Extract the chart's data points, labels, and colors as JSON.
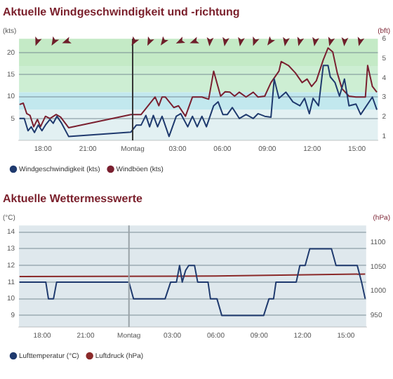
{
  "chart_data": [
    {
      "type": "line",
      "title": "Aktuelle Windgeschwindigkeit und -richtung",
      "ylabel": "(kts)",
      "y2label": "(bft)",
      "xlim": [
        "--03-15T16:24",
        "--03-16T16:24"
      ],
      "xticks": [
        {
          "value": "--03-15T18:00",
          "label": "18:00"
        },
        {
          "value": "--03-15T21:00",
          "label": "21:00"
        },
        {
          "value": "--03-16T00:00",
          "label": "Montag"
        },
        {
          "value": "--03-16T03:00",
          "label": "03:00"
        },
        {
          "value": "--03-16T06:00",
          "label": "06:00"
        },
        {
          "value": "--03-16T09:00",
          "label": "09:00"
        },
        {
          "value": "--03-16T12:00",
          "label": "12:00"
        },
        {
          "value": "--03-16T15:00",
          "label": "15:00"
        }
      ],
      "ylim": [
        0,
        23.2
      ],
      "yticks": [
        5,
        10,
        15,
        20
      ],
      "y2lim": [
        0.8,
        6
      ],
      "y2ticks": [
        1,
        2,
        3,
        4,
        5,
        6
      ],
      "grid": "y",
      "legend": "bottom",
      "marker": "none",
      "bands": [
        {
          "axis": "y",
          "from": 0,
          "to": 7,
          "color": "#e2f0f2"
        },
        {
          "axis": "y",
          "from": 7,
          "to": 11,
          "color": "#c2e8ee"
        },
        {
          "axis": "y",
          "from": 11,
          "to": 17,
          "color": "#cdeed3"
        },
        {
          "axis": "y",
          "from": 17,
          "to": 23.2,
          "color": "#c4eac6"
        }
      ],
      "ref_lines": [
        {
          "axis": "x",
          "value": "--03-16T00:00",
          "color": "#333333"
        }
      ],
      "series": [
        {
          "name": "Windgeschwindigkeit (kts)",
          "color": "#1f3a6e",
          "x": [
            "--03-15T16:26",
            "--03-15T16:45",
            "--03-15T17:00",
            "--03-15T17:13",
            "--03-15T17:26",
            "--03-15T17:41",
            "--03-15T17:56",
            "--03-15T18:10",
            "--03-15T18:28",
            "--03-15T18:41",
            "--03-15T18:56",
            "--03-15T19:15",
            "--03-15T19:43",
            "--03-15T23:53",
            "--03-16T00:15",
            "--03-16T00:34",
            "--03-16T00:53",
            "--03-16T01:08",
            "--03-16T01:23",
            "--03-16T01:40",
            "--03-16T01:58",
            "--03-16T02:26",
            "--03-16T02:55",
            "--03-16T03:13",
            "--03-16T03:41",
            "--03-16T04:00",
            "--03-16T04:19",
            "--03-16T04:38",
            "--03-16T04:56",
            "--03-16T05:25",
            "--03-16T05:43",
            "--03-16T06:02",
            "--03-16T06:20",
            "--03-16T06:40",
            "--03-16T07:08",
            "--03-16T07:35",
            "--03-16T08:04",
            "--03-16T08:23",
            "--03-16T08:50",
            "--03-16T09:15",
            "--03-16T09:28",
            "--03-16T09:47",
            "--03-16T10:15",
            "--03-16T10:43",
            "--03-16T11:11",
            "--03-16T11:30",
            "--03-16T11:49",
            "--03-16T12:04",
            "--03-16T12:26",
            "--03-16T12:45",
            "--03-16T13:04",
            "--03-16T13:13",
            "--03-16T13:32",
            "--03-16T13:50",
            "--03-16T14:10",
            "--03-16T14:28",
            "--03-16T14:56",
            "--03-16T15:15",
            "--03-16T16:02",
            "--03-16T16:20"
          ],
          "values": [
            5.0,
            5.0,
            2.2,
            3.1,
            1.8,
            3.5,
            2.2,
            3.5,
            4.8,
            3.9,
            5.5,
            3.9,
            0.9,
            1.9,
            3.5,
            3.5,
            5.7,
            3.1,
            5.7,
            3.1,
            5.5,
            0.9,
            5.5,
            6.1,
            3.1,
            5.5,
            3.1,
            5.5,
            3.1,
            7.9,
            8.8,
            5.9,
            5.9,
            7.5,
            5.0,
            5.9,
            5.0,
            6.1,
            5.5,
            5.3,
            14.0,
            9.6,
            11.0,
            8.8,
            7.9,
            9.6,
            6.1,
            9.6,
            7.9,
            17.1,
            17.1,
            14.5,
            13.2,
            10.1,
            14.0,
            7.9,
            8.3,
            5.9,
            9.9,
            7.0
          ]
        },
        {
          "name": "Windböen (kts)",
          "color": "#7a2030",
          "x": [
            "--03-15T16:26",
            "--03-15T16:41",
            "--03-15T16:55",
            "--03-15T17:08",
            "--03-15T17:23",
            "--03-15T17:38",
            "--03-15T17:50",
            "--03-15T18:10",
            "--03-15T18:28",
            "--03-15T18:53",
            "--03-15T19:11",
            "--03-15T19:43",
            "--03-15T23:53",
            "--03-16T00:34",
            "--03-16T01:30",
            "--03-16T01:45",
            "--03-16T01:58",
            "--03-16T02:11",
            "--03-16T02:45",
            "--03-16T03:04",
            "--03-16T03:32",
            "--03-16T04:00",
            "--03-16T04:38",
            "--03-16T05:05",
            "--03-16T05:25",
            "--03-16T05:53",
            "--03-16T06:11",
            "--03-16T06:30",
            "--03-16T06:49",
            "--03-16T07:08",
            "--03-16T07:35",
            "--03-16T08:04",
            "--03-16T08:23",
            "--03-16T08:50",
            "--03-16T09:15",
            "--03-16T09:47",
            "--03-16T09:56",
            "--03-16T10:25",
            "--03-16T10:53",
            "--03-16T11:20",
            "--03-16T11:40",
            "--03-16T11:58",
            "--03-16T12:17",
            "--03-16T12:45",
            "--03-16T13:04",
            "--03-16T13:23",
            "--03-16T13:41",
            "--03-16T14:00",
            "--03-16T14:28",
            "--03-16T14:56",
            "--03-16T15:34",
            "--03-16T15:43",
            "--03-16T16:02",
            "--03-16T16:20"
          ],
          "values": [
            8.2,
            8.5,
            6.1,
            5.7,
            3.1,
            4.8,
            3.1,
            5.5,
            5.0,
            5.9,
            5.3,
            2.9,
            5.9,
            5.9,
            9.9,
            7.9,
            9.9,
            9.9,
            7.5,
            7.9,
            5.5,
            9.9,
            9.9,
            9.4,
            15.8,
            10.1,
            11.1,
            11.0,
            10.1,
            11.0,
            9.9,
            11.0,
            9.9,
            10.1,
            13.2,
            15.8,
            18.0,
            17.1,
            15.4,
            13.2,
            14.0,
            12.3,
            13.6,
            18.4,
            21.1,
            20.2,
            15.4,
            11.8,
            10.1,
            9.9,
            9.9,
            17.1,
            12.3,
            11.0
          ]
        }
      ]
    },
    {
      "type": "line",
      "title": "Aktuelle Wettermesswerte",
      "ylabel": "(°C)",
      "y2label": "(hPa)",
      "xlim": [
        "--03-15T16:24",
        "--03-16T16:24"
      ],
      "xticks": [
        {
          "value": "--03-15T18:00",
          "label": "18:00"
        },
        {
          "value": "--03-15T21:00",
          "label": "21:00"
        },
        {
          "value": "--03-16T00:00",
          "label": "Montag"
        },
        {
          "value": "--03-16T03:00",
          "label": "03:00"
        },
        {
          "value": "--03-16T06:00",
          "label": "06:00"
        },
        {
          "value": "--03-16T09:00",
          "label": "09:00"
        },
        {
          "value": "--03-16T12:00",
          "label": "12:00"
        },
        {
          "value": "--03-16T15:00",
          "label": "15:00"
        }
      ],
      "ylim": [
        8.3,
        14.4
      ],
      "yticks": [
        9,
        10,
        11,
        12,
        13,
        14
      ],
      "y2lim": [
        926,
        1135
      ],
      "y2ticks": [
        950,
        1000,
        1050,
        1100
      ],
      "grid": "y",
      "legend": "bottom",
      "marker": "none",
      "ref_lines": [
        {
          "axis": "x",
          "value": "--03-16T00:00",
          "color": "#9aa3a8"
        }
      ],
      "series": [
        {
          "name": "Lufttemperatur (°C)",
          "color": "#1f3a6e",
          "x": [
            "--03-15T16:26",
            "--03-15T18:15",
            "--03-15T18:26",
            "--03-15T18:47",
            "--03-15T19:00",
            "--03-16T00:00",
            "--03-16T00:19",
            "--03-16T02:30",
            "--03-16T02:53",
            "--03-16T03:17",
            "--03-16T03:30",
            "--03-16T03:41",
            "--03-16T03:55",
            "--03-16T04:08",
            "--03-16T04:32",
            "--03-16T04:45",
            "--03-16T05:28",
            "--03-16T05:38",
            "--03-16T06:05",
            "--03-16T06:25",
            "--03-16T09:19",
            "--03-16T09:41",
            "--03-16T10:00",
            "--03-16T10:10",
            "--03-16T11:34",
            "--03-16T11:49",
            "--03-16T12:11",
            "--03-16T12:30",
            "--03-16T14:00",
            "--03-16T14:19",
            "--03-16T15:47",
            "--03-16T16:05",
            "--03-16T16:20"
          ],
          "values": [
            11,
            11,
            10,
            10,
            11,
            11,
            10,
            10,
            11,
            11,
            12,
            11,
            11.7,
            12,
            12,
            11,
            11,
            10,
            10,
            9,
            9,
            10,
            10,
            11,
            11,
            12,
            12,
            13,
            13,
            12,
            12,
            11,
            10
          ]
        },
        {
          "name": "Luftdruck (hPa)",
          "color": "#8b2a2a",
          "axis": "y2",
          "x": [
            "--03-15T16:26",
            "--03-16T06:00",
            "--03-16T16:20"
          ],
          "values": [
            1030,
            1031,
            1035
          ]
        }
      ]
    }
  ]
}
